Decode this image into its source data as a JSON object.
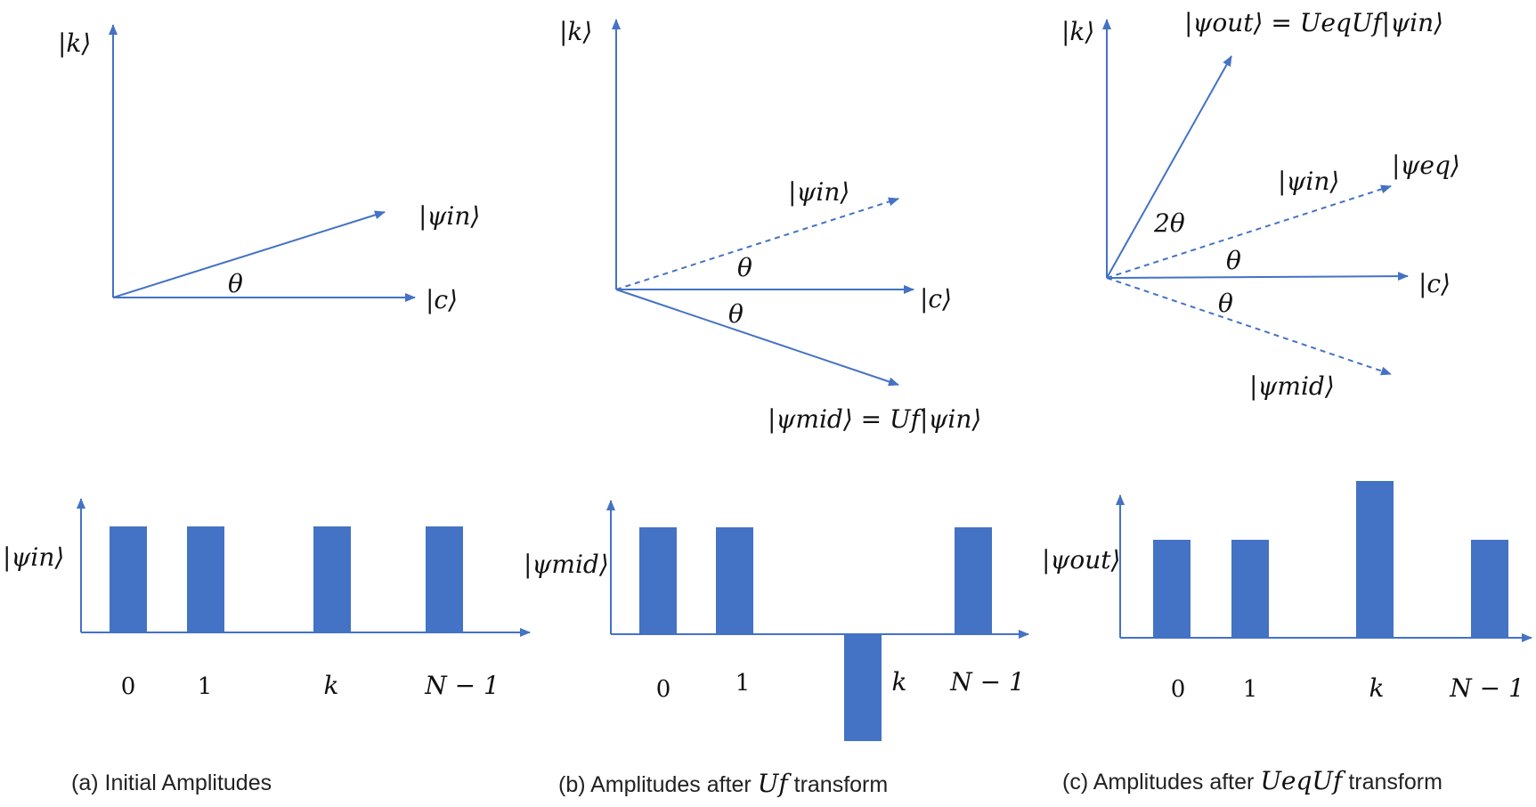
{
  "colors": {
    "accent": "#4472C4",
    "text": "#111111"
  },
  "panel_a": {
    "axis_y_label": "|k⟩",
    "vector_in_label": "|ψin⟩",
    "axis_x_label": "|c⟩",
    "angle_label": "θ",
    "bars_label": "|ψin⟩",
    "ticks": [
      "0",
      "1",
      "k",
      "N − 1"
    ],
    "amplitudes": [
      1,
      1,
      1,
      1
    ],
    "caption": "(a) Initial Amplitudes"
  },
  "panel_b": {
    "axis_y_label": "|k⟩",
    "vector_in_label": "|ψin⟩",
    "axis_x_label": "|c⟩",
    "angle_upper_label": "θ",
    "angle_lower_label": "θ",
    "vector_mid_label": "|ψmid⟩ = Uf|ψin⟩",
    "bars_label": "|ψmid⟩",
    "ticks": [
      "0",
      "1",
      "k",
      "N − 1"
    ],
    "amplitudes": [
      1,
      1,
      -1,
      1
    ],
    "caption_prefix": "(b) Amplitudes after ",
    "caption_op": "Uf",
    "caption_suffix": " transform"
  },
  "panel_c": {
    "axis_y_label": "|k⟩",
    "vector_out_label": "|ψout⟩ = UeqUf|ψin⟩",
    "vector_eq_label": "|ψeq⟩",
    "vector_in_label": "|ψin⟩",
    "two_theta_label": "2θ",
    "angle_upper_label": "θ",
    "axis_x_label": "|c⟩",
    "angle_lower_label": "θ",
    "vector_mid_label": "|ψmid⟩",
    "bars_label": "|ψout⟩",
    "ticks": [
      "0",
      "1",
      "k",
      "N − 1"
    ],
    "amplitudes": [
      1,
      1,
      1.6,
      1
    ],
    "caption_prefix": "(c) Amplitudes after ",
    "caption_op": "UeqUf",
    "caption_suffix": " transform"
  }
}
